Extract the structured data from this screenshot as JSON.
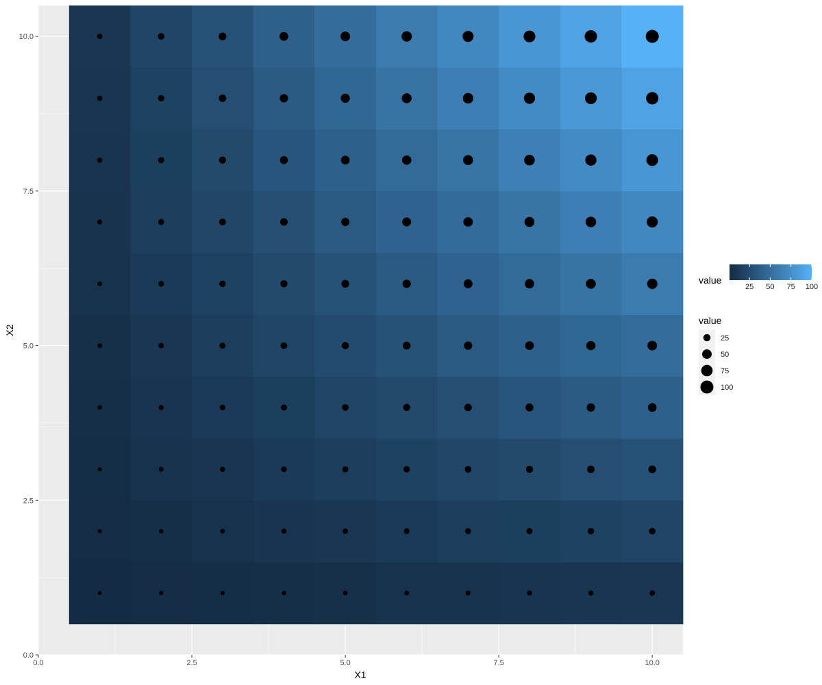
{
  "chart_data": {
    "type": "heatmap",
    "title": "",
    "xlabel": "X1",
    "ylabel": "X2",
    "x_values": [
      1,
      2,
      3,
      4,
      5,
      6,
      7,
      8,
      9,
      10
    ],
    "y_values": [
      1,
      2,
      3,
      4,
      5,
      6,
      7,
      8,
      9,
      10
    ],
    "value_formula": "X1 * X2",
    "xlim": [
      0,
      10.5
    ],
    "ylim": [
      0,
      10.5
    ],
    "x_ticks": [
      0,
      2.5,
      5,
      7.5,
      10
    ],
    "x_tick_labels": [
      "0.0",
      "2.5",
      "5.0",
      "7.5",
      "10.0"
    ],
    "y_ticks": [
      0,
      2.5,
      5,
      7.5,
      10
    ],
    "y_tick_labels": [
      "0.0",
      "2.5",
      "5.0",
      "7.5",
      "10.0"
    ],
    "grid": true,
    "fill_scale": {
      "name": "value",
      "low_color": "#132B43",
      "high_color": "#56B1F7",
      "range": [
        1,
        100
      ],
      "breaks": [
        25,
        50,
        75,
        100
      ],
      "labels": [
        "25",
        "50",
        "75",
        "100"
      ]
    },
    "size_scale": {
      "name": "value",
      "range": [
        1,
        100
      ],
      "breaks": [
        25,
        50,
        75,
        100
      ],
      "labels": [
        "25",
        "50",
        "75",
        "100"
      ]
    },
    "legend_position": "right",
    "point_color": "#000000",
    "panel_background": "#EBEBEB",
    "grid_color": "#FFFFFF"
  }
}
